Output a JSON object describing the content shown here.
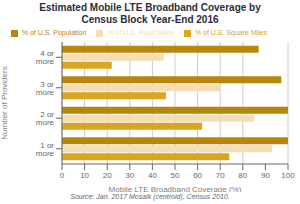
{
  "chart_data": {
    "type": "bar",
    "orientation": "horizontal",
    "title": "Estimated Mobile LTE Broadband Coverage by\nCensus Block Year-End 2016",
    "xlabel": "Mobile LTE Broadband Coverage (%)",
    "ylabel": "Number of Providers",
    "categories": [
      "1 or more",
      "2 or more",
      "3 or more",
      "4 or more"
    ],
    "series": [
      {
        "name": "% of U.S. Population",
        "color": "#B8860B",
        "values": [
          100,
          100,
          97,
          87
        ]
      },
      {
        "name": "% of U.S. Road Miles",
        "color": "#F5DEB3",
        "values": [
          93,
          85,
          70,
          45
        ]
      },
      {
        "name": "% of U.S. Square Miles",
        "color": "#DAA520",
        "values": [
          74,
          62,
          46,
          22
        ]
      }
    ],
    "xlim": [
      0,
      100
    ],
    "xticks": [
      0,
      10,
      20,
      30,
      40,
      50,
      60,
      70,
      80,
      90,
      100
    ],
    "grid": true,
    "legend": "top",
    "annotations": [
      "Source: Jan. 2017 Mosaik (centroid), Census 2010."
    ]
  }
}
